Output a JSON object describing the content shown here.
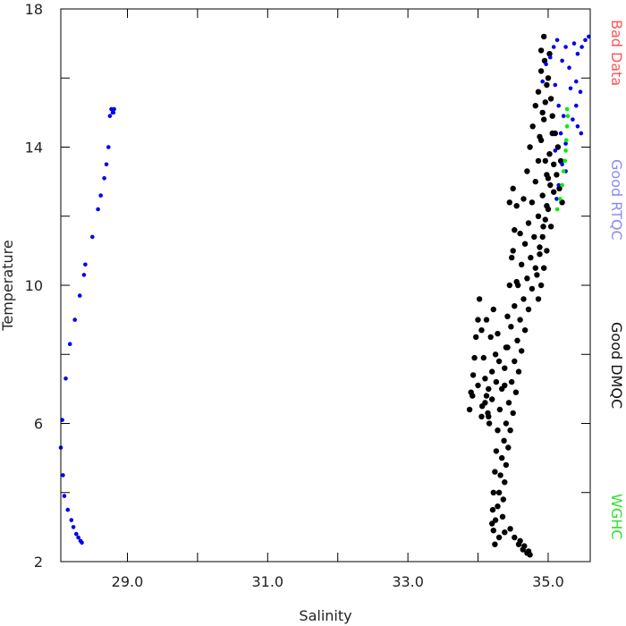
{
  "chart_data": {
    "type": "scatter",
    "xlabel": "Salinity",
    "ylabel": "Temperature",
    "xlim": [
      28.05,
      35.6
    ],
    "ylim": [
      2,
      18
    ],
    "x_tick_labels": [
      "29.0",
      "31.0",
      "33.0",
      "35.0"
    ],
    "x_tick_values": [
      29.0,
      31.0,
      33.0,
      35.0
    ],
    "x_minor_ticks": [
      30.0,
      32.0,
      34.0
    ],
    "y_tick_labels": [
      "2",
      "6",
      "10",
      "14",
      "18"
    ],
    "y_tick_values": [
      2,
      6,
      10,
      14,
      18
    ],
    "y_minor_ticks": [
      4,
      8,
      12,
      16
    ],
    "legend": [
      {
        "label": "Bad Data",
        "color": "#ff5555"
      },
      {
        "label": "Good RTQC",
        "color": "#8a8cf0"
      },
      {
        "label": "Good DMQC",
        "color": "#111111"
      },
      {
        "label": "WGHC",
        "color": "#33dd33"
      }
    ],
    "series": [
      {
        "name": "Good DMQC",
        "color": "#000000",
        "points": [
          [
            34.22,
            2.9
          ],
          [
            34.25,
            3.2
          ],
          [
            34.28,
            3.6
          ],
          [
            34.3,
            4.0
          ],
          [
            34.32,
            4.5
          ],
          [
            34.34,
            5.0
          ],
          [
            34.37,
            5.5
          ],
          [
            34.4,
            6.0
          ],
          [
            34.44,
            6.6
          ],
          [
            34.48,
            7.2
          ],
          [
            34.52,
            7.8
          ],
          [
            34.56,
            8.4
          ],
          [
            34.6,
            9.0
          ],
          [
            34.65,
            9.6
          ],
          [
            34.7,
            10.2
          ],
          [
            34.75,
            10.8
          ],
          [
            34.8,
            11.4
          ],
          [
            34.86,
            12.0
          ],
          [
            34.92,
            12.6
          ],
          [
            34.98,
            13.2
          ],
          [
            35.02,
            13.8
          ],
          [
            35.06,
            14.4
          ],
          [
            34.24,
            2.5
          ],
          [
            34.3,
            2.7
          ],
          [
            34.38,
            2.85
          ],
          [
            34.46,
            2.95
          ],
          [
            34.52,
            2.7
          ],
          [
            34.58,
            2.5
          ],
          [
            34.64,
            2.35
          ],
          [
            34.7,
            2.25
          ],
          [
            34.74,
            2.2
          ],
          [
            34.72,
            2.3
          ],
          [
            34.66,
            2.45
          ],
          [
            34.6,
            2.6
          ],
          [
            34.35,
            3.3
          ],
          [
            34.36,
            3.8
          ],
          [
            34.38,
            4.3
          ],
          [
            34.4,
            4.8
          ],
          [
            34.43,
            5.3
          ],
          [
            34.46,
            5.8
          ],
          [
            34.5,
            6.3
          ],
          [
            34.54,
            6.9
          ],
          [
            34.58,
            7.5
          ],
          [
            34.62,
            8.1
          ],
          [
            34.67,
            8.7
          ],
          [
            34.72,
            9.3
          ],
          [
            34.77,
            9.9
          ],
          [
            34.82,
            10.5
          ],
          [
            34.88,
            11.1
          ],
          [
            34.93,
            11.7
          ],
          [
            34.98,
            12.3
          ],
          [
            35.03,
            12.9
          ],
          [
            35.08,
            13.5
          ],
          [
            34.2,
            3.1
          ],
          [
            34.21,
            3.5
          ],
          [
            34.22,
            4.0
          ],
          [
            34.24,
            4.6
          ],
          [
            34.26,
            5.2
          ],
          [
            34.28,
            5.8
          ],
          [
            34.31,
            6.4
          ],
          [
            34.34,
            7.0
          ],
          [
            34.38,
            7.6
          ],
          [
            34.42,
            8.2
          ],
          [
            34.47,
            8.8
          ],
          [
            34.52,
            9.4
          ],
          [
            34.57,
            10.0
          ],
          [
            34.62,
            10.6
          ],
          [
            34.67,
            11.2
          ],
          [
            34.72,
            11.8
          ],
          [
            34.77,
            12.4
          ],
          [
            34.82,
            13.0
          ],
          [
            34.86,
            13.6
          ],
          [
            34.9,
            14.2
          ],
          [
            34.94,
            14.8
          ],
          [
            34.96,
            15.3
          ],
          [
            33.88,
            6.4
          ],
          [
            33.9,
            6.9
          ],
          [
            33.93,
            7.4
          ],
          [
            33.95,
            7.9
          ],
          [
            33.97,
            8.5
          ],
          [
            34.0,
            9.0
          ],
          [
            34.02,
            9.6
          ],
          [
            34.05,
            8.7
          ],
          [
            34.08,
            7.9
          ],
          [
            34.1,
            7.3
          ],
          [
            34.12,
            6.8
          ],
          [
            34.14,
            6.3
          ],
          [
            34.16,
            6.0
          ],
          [
            34.06,
            6.5
          ],
          [
            34.0,
            7.1
          ],
          [
            33.92,
            6.8
          ],
          [
            34.05,
            6.2
          ],
          [
            34.1,
            6.6
          ],
          [
            34.15,
            7.0
          ],
          [
            34.2,
            7.5
          ],
          [
            34.25,
            8.0
          ],
          [
            34.18,
            8.5
          ],
          [
            34.12,
            9.0
          ],
          [
            34.22,
            9.3
          ],
          [
            34.28,
            8.6
          ],
          [
            34.3,
            7.8
          ],
          [
            34.26,
            7.2
          ],
          [
            34.2,
            6.7
          ],
          [
            34.15,
            6.2
          ],
          [
            34.38,
            7.1
          ],
          [
            34.4,
            8.2
          ],
          [
            34.42,
            9.1
          ],
          [
            34.45,
            10.0
          ],
          [
            34.48,
            10.8
          ],
          [
            34.52,
            11.6
          ],
          [
            34.55,
            12.3
          ],
          [
            34.5,
            12.8
          ],
          [
            34.45,
            12.4
          ],
          [
            34.5,
            11.0
          ],
          [
            34.55,
            10.1
          ],
          [
            34.6,
            11.5
          ],
          [
            34.65,
            12.5
          ],
          [
            34.7,
            13.3
          ],
          [
            34.74,
            14.0
          ],
          [
            34.78,
            14.6
          ],
          [
            34.82,
            15.2
          ],
          [
            34.86,
            15.6
          ],
          [
            34.9,
            16.2
          ],
          [
            34.95,
            16.5
          ],
          [
            34.98,
            15.8
          ],
          [
            34.92,
            15.0
          ],
          [
            34.88,
            14.3
          ],
          [
            34.9,
            16.8
          ],
          [
            34.94,
            17.2
          ],
          [
            35.0,
            16.0
          ],
          [
            35.04,
            15.4
          ],
          [
            35.02,
            16.7
          ],
          [
            35.06,
            14.9
          ],
          [
            35.1,
            14.4
          ],
          [
            35.14,
            14.0
          ],
          [
            35.18,
            13.6
          ],
          [
            35.12,
            13.2
          ],
          [
            35.16,
            12.8
          ],
          [
            35.2,
            12.4
          ],
          [
            35.08,
            12.7
          ],
          [
            35.0,
            13.1
          ],
          [
            34.96,
            13.6
          ],
          [
            34.84,
            10.3
          ],
          [
            34.88,
            10.9
          ],
          [
            34.92,
            11.4
          ],
          [
            34.96,
            11.9
          ],
          [
            35.0,
            12.2
          ],
          [
            35.04,
            11.7
          ],
          [
            34.98,
            11.0
          ],
          [
            34.94,
            10.5
          ],
          [
            34.9,
            10.0
          ],
          [
            34.86,
            9.6
          ]
        ]
      },
      {
        "name": "Good RTQC",
        "color": "#0000ee",
        "points": [
          [
            28.05,
            5.3
          ],
          [
            28.07,
            6.1
          ],
          [
            28.08,
            4.5
          ],
          [
            28.1,
            3.9
          ],
          [
            28.12,
            7.3
          ],
          [
            28.15,
            3.5
          ],
          [
            28.18,
            8.3
          ],
          [
            28.2,
            3.2
          ],
          [
            28.23,
            3.0
          ],
          [
            28.25,
            9.0
          ],
          [
            28.27,
            2.8
          ],
          [
            28.3,
            2.7
          ],
          [
            28.32,
            9.7
          ],
          [
            28.33,
            2.6
          ],
          [
            28.35,
            2.55
          ],
          [
            28.38,
            10.3
          ],
          [
            28.4,
            10.6
          ],
          [
            28.5,
            11.4
          ],
          [
            28.58,
            12.2
          ],
          [
            28.62,
            12.6
          ],
          [
            28.67,
            13.1
          ],
          [
            28.7,
            13.5
          ],
          [
            28.73,
            14.0
          ],
          [
            28.75,
            14.9
          ],
          [
            28.77,
            15.1
          ],
          [
            28.79,
            15.0
          ],
          [
            28.81,
            15.1
          ],
          [
            28.8,
            15.0
          ],
          [
            34.92,
            15.9
          ],
          [
            34.97,
            16.4
          ],
          [
            35.03,
            16.6
          ],
          [
            35.08,
            16.9
          ],
          [
            35.13,
            17.1
          ],
          [
            35.2,
            16.5
          ],
          [
            35.25,
            16.9
          ],
          [
            35.3,
            16.3
          ],
          [
            35.37,
            17.0
          ],
          [
            35.42,
            16.7
          ],
          [
            35.48,
            16.9
          ],
          [
            35.53,
            17.1
          ],
          [
            35.58,
            17.2
          ],
          [
            35.32,
            15.7
          ],
          [
            35.4,
            15.9
          ],
          [
            35.46,
            15.6
          ],
          [
            35.1,
            15.8
          ],
          [
            35.15,
            15.2
          ],
          [
            35.22,
            14.9
          ],
          [
            35.35,
            14.8
          ],
          [
            35.42,
            14.6
          ],
          [
            35.47,
            14.4
          ],
          [
            35.18,
            14.4
          ],
          [
            35.25,
            14.1
          ],
          [
            35.1,
            13.9
          ],
          [
            35.2,
            13.5
          ],
          [
            35.15,
            12.9
          ],
          [
            35.25,
            13.3
          ],
          [
            35.12,
            12.5
          ],
          [
            35.4,
            15.2
          ]
        ]
      },
      {
        "name": "WGHC",
        "color": "#00ee00",
        "points": [
          [
            35.27,
            15.1
          ],
          [
            35.28,
            14.9
          ],
          [
            35.27,
            14.6
          ],
          [
            35.26,
            14.2
          ],
          [
            35.25,
            13.9
          ],
          [
            35.24,
            13.6
          ],
          [
            35.22,
            13.3
          ],
          [
            35.2,
            12.9
          ],
          [
            35.17,
            12.5
          ],
          [
            35.13,
            12.2
          ]
        ]
      }
    ]
  }
}
